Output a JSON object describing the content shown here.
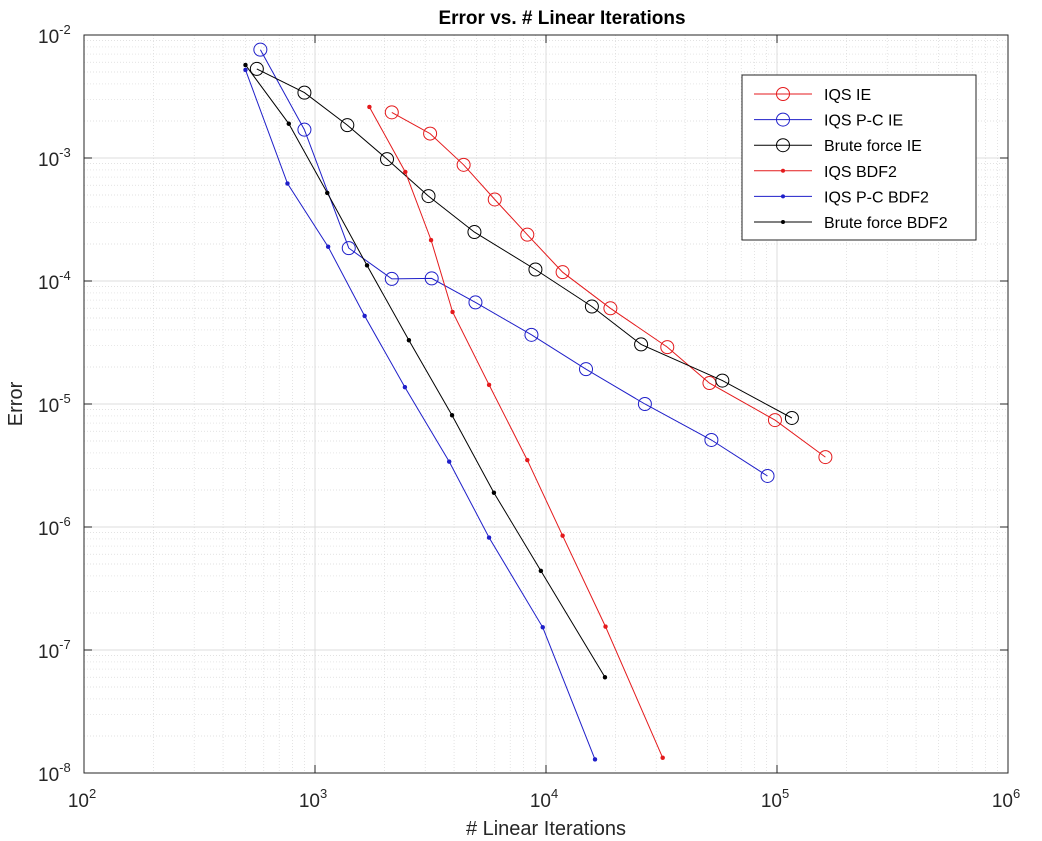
{
  "chart_data": {
    "type": "line",
    "title": "Error vs. # Linear Iterations",
    "xlabel": "# Linear Iterations",
    "ylabel": "Error",
    "xscale": "log",
    "yscale": "log",
    "xlim": [
      100,
      1000000
    ],
    "ylim": [
      1e-08,
      0.01
    ],
    "grid": true,
    "minor_grid": true,
    "legend_position": "top-right",
    "x_ticks": [
      {
        "value": 100,
        "base": "10",
        "exp": "2"
      },
      {
        "value": 1000,
        "base": "10",
        "exp": "3"
      },
      {
        "value": 10000,
        "base": "10",
        "exp": "4"
      },
      {
        "value": 100000,
        "base": "10",
        "exp": "5"
      },
      {
        "value": 1000000,
        "base": "10",
        "exp": "6"
      }
    ],
    "y_ticks": [
      {
        "value": 1e-08,
        "base": "10",
        "exp": "-8"
      },
      {
        "value": 1e-07,
        "base": "10",
        "exp": "-7"
      },
      {
        "value": 1e-06,
        "base": "10",
        "exp": "-6"
      },
      {
        "value": 1e-05,
        "base": "10",
        "exp": "-5"
      },
      {
        "value": 0.0001,
        "base": "10",
        "exp": "-4"
      },
      {
        "value": 0.001,
        "base": "10",
        "exp": "-3"
      },
      {
        "value": 0.01,
        "base": "10",
        "exp": "-2"
      }
    ],
    "series": [
      {
        "name": "IQS IE",
        "color": "#e41a1c",
        "marker": "circle",
        "x": [
          2150,
          3150,
          4400,
          6000,
          8300,
          11800,
          19000,
          33500,
          51000,
          98000,
          162000
        ],
        "y": [
          0.00235,
          0.00158,
          0.00088,
          0.00046,
          0.000238,
          0.000118,
          6e-05,
          2.9e-05,
          1.48e-05,
          7.4e-06,
          3.7e-06
        ]
      },
      {
        "name": "IQS P-C IE",
        "color": "#1f1fc9",
        "marker": "circle",
        "x": [
          580,
          900,
          1400,
          2150,
          3200,
          4950,
          8650,
          14900,
          26800,
          52000,
          91000
        ],
        "y": [
          0.0076,
          0.0017,
          0.000185,
          0.000104,
          0.000105,
          6.7e-05,
          3.65e-05,
          1.92e-05,
          1e-05,
          5.1e-06,
          2.6e-06
        ]
      },
      {
        "name": "Brute force IE",
        "color": "#000000",
        "marker": "circle",
        "x": [
          560,
          900,
          1380,
          2050,
          3100,
          4900,
          9000,
          15800,
          25800,
          58000,
          116000
        ],
        "y": [
          0.0053,
          0.0034,
          0.00185,
          0.00098,
          0.00049,
          0.00025,
          0.000124,
          6.2e-05,
          3.05e-05,
          1.55e-05,
          7.7e-06
        ]
      },
      {
        "name": "IQS BDF2",
        "color": "#e41a1c",
        "marker": "dot",
        "x": [
          1720,
          2460,
          3180,
          3940,
          5670,
          8300,
          11800,
          18100,
          32000
        ],
        "y": [
          0.0026,
          0.00077,
          0.000215,
          5.6e-05,
          1.43e-05,
          3.5e-06,
          8.5e-07,
          1.55e-07,
          1.33e-08
        ]
      },
      {
        "name": "IQS P-C BDF2",
        "color": "#1f1fc9",
        "marker": "dot",
        "x": [
          500,
          760,
          1140,
          1640,
          2450,
          3810,
          5670,
          9680,
          16300
        ],
        "y": [
          0.0052,
          0.00062,
          0.00019,
          5.2e-05,
          1.37e-05,
          3.4e-06,
          8.2e-07,
          1.53e-07,
          1.29e-08
        ]
      },
      {
        "name": "Brute force BDF2",
        "color": "#000000",
        "marker": "dot",
        "x": [
          500,
          770,
          1130,
          1680,
          2550,
          3920,
          5950,
          9500,
          18000
        ],
        "y": [
          0.0057,
          0.0019,
          0.00052,
          0.000134,
          3.3e-05,
          8.1e-06,
          1.9e-06,
          4.4e-07,
          6e-08
        ]
      }
    ]
  }
}
